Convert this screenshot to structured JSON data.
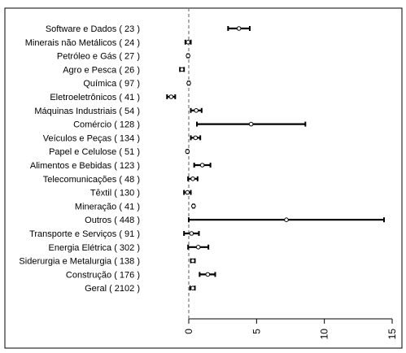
{
  "chart_data": {
    "type": "error-bar",
    "orientation": "horizontal",
    "categories": [
      "Software e Dados ( 23 )",
      "Minerais não Metálicos ( 24 )",
      "Petróleo e Gás ( 27 )",
      "Agro e Pesca ( 26 )",
      "Química ( 97 )",
      "Eletroeletrônicos ( 41 )",
      "Máquinas Industriais ( 54 )",
      "Comércio ( 128 )",
      "Veículos e Peças ( 134 )",
      "Papel e Celulose ( 51 )",
      "Alimentos e Bebidas ( 123 )",
      "Telecomunicações ( 48 )",
      "Têxtil ( 130 )",
      "Mineração ( 41 )",
      "Outros ( 448 )",
      "Transporte e Serviços ( 91 )",
      "Energia Elétrica ( 302 )",
      "Siderurgia e Metalurgia ( 138 )",
      "Construção ( 176 )",
      "Geral ( 2102 )"
    ],
    "series": [
      {
        "estimate": [
          3.7,
          -0.05,
          -0.05,
          -0.5,
          0.0,
          -1.3,
          0.55,
          4.6,
          0.5,
          -0.1,
          1.0,
          0.3,
          -0.1,
          0.35,
          7.2,
          0.2,
          0.7,
          0.3,
          1.4,
          0.3
        ],
        "lower": [
          2.9,
          -0.25,
          -0.1,
          -0.65,
          -0.05,
          -1.6,
          0.15,
          0.6,
          0.15,
          -0.15,
          0.4,
          -0.05,
          -0.35,
          0.3,
          0.0,
          -0.35,
          -0.05,
          0.15,
          0.8,
          0.1
        ],
        "upper": [
          4.5,
          0.15,
          0.0,
          -0.35,
          0.05,
          -1.0,
          0.95,
          8.6,
          0.85,
          -0.05,
          1.6,
          0.65,
          0.15,
          0.4,
          14.4,
          0.75,
          1.45,
          0.45,
          1.95,
          0.45
        ]
      }
    ],
    "xticks": [
      0,
      5,
      10,
      15
    ],
    "xlim": [
      -1.9,
      15.0
    ],
    "reference_line": 0,
    "tick_label_rotation": "vertical",
    "grid": false,
    "legend": "none"
  }
}
